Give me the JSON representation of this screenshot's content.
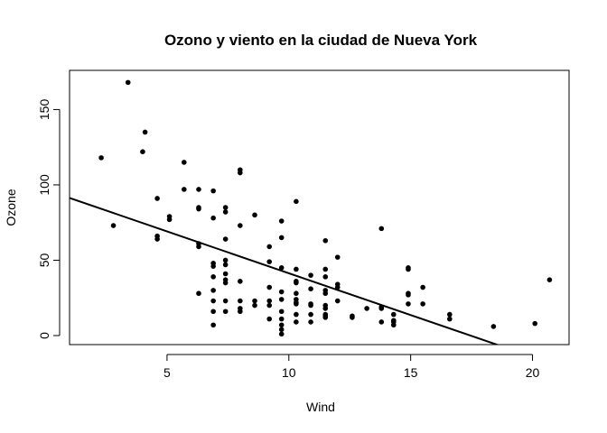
{
  "chart_data": {
    "type": "scatter",
    "title": "Ozono y viento en la ciudad de Nueva York",
    "xlabel": "Wind",
    "ylabel": "Ozone",
    "xlim": [
      1.0,
      21.5
    ],
    "ylim": [
      -6,
      176
    ],
    "xticks": [
      5,
      10,
      15,
      20
    ],
    "yticks": [
      0,
      50,
      100,
      150
    ],
    "grid": false,
    "points": [
      [
        2.3,
        118
      ],
      [
        2.8,
        73
      ],
      [
        3.4,
        168
      ],
      [
        4.0,
        122
      ],
      [
        4.1,
        135
      ],
      [
        4.6,
        91
      ],
      [
        4.6,
        66
      ],
      [
        4.6,
        64
      ],
      [
        5.1,
        79
      ],
      [
        5.1,
        77
      ],
      [
        5.7,
        115
      ],
      [
        5.7,
        97
      ],
      [
        6.3,
        97
      ],
      [
        6.3,
        85
      ],
      [
        6.3,
        84
      ],
      [
        6.3,
        61
      ],
      [
        6.3,
        59
      ],
      [
        6.3,
        28
      ],
      [
        6.9,
        96
      ],
      [
        6.9,
        78
      ],
      [
        6.9,
        48
      ],
      [
        6.9,
        46
      ],
      [
        6.9,
        39
      ],
      [
        6.9,
        30
      ],
      [
        6.9,
        23
      ],
      [
        6.9,
        16
      ],
      [
        6.9,
        7
      ],
      [
        7.4,
        85
      ],
      [
        7.4,
        82
      ],
      [
        7.4,
        64
      ],
      [
        7.4,
        50
      ],
      [
        7.4,
        47
      ],
      [
        7.4,
        41
      ],
      [
        7.4,
        37
      ],
      [
        7.4,
        35
      ],
      [
        7.4,
        23
      ],
      [
        7.4,
        16
      ],
      [
        8.0,
        110
      ],
      [
        8.0,
        108
      ],
      [
        8.0,
        73
      ],
      [
        8.0,
        36
      ],
      [
        8.0,
        23
      ],
      [
        8.0,
        18
      ],
      [
        8.0,
        16
      ],
      [
        8.6,
        80
      ],
      [
        8.6,
        23
      ],
      [
        8.6,
        20
      ],
      [
        9.2,
        59
      ],
      [
        9.2,
        49
      ],
      [
        9.2,
        32
      ],
      [
        9.2,
        23
      ],
      [
        9.2,
        20
      ],
      [
        9.2,
        11
      ],
      [
        9.7,
        76
      ],
      [
        9.7,
        65
      ],
      [
        9.7,
        45
      ],
      [
        9.7,
        29
      ],
      [
        9.7,
        24
      ],
      [
        9.7,
        16
      ],
      [
        9.7,
        11
      ],
      [
        9.7,
        7
      ],
      [
        9.7,
        4
      ],
      [
        9.7,
        1
      ],
      [
        10.3,
        89
      ],
      [
        10.3,
        44
      ],
      [
        10.3,
        36
      ],
      [
        10.3,
        35
      ],
      [
        10.3,
        28
      ],
      [
        10.3,
        24
      ],
      [
        10.3,
        22
      ],
      [
        10.3,
        21
      ],
      [
        10.3,
        14
      ],
      [
        10.3,
        9
      ],
      [
        10.9,
        40
      ],
      [
        10.9,
        31
      ],
      [
        10.9,
        21
      ],
      [
        10.9,
        20
      ],
      [
        10.9,
        14
      ],
      [
        10.9,
        9
      ],
      [
        11.5,
        63
      ],
      [
        11.5,
        44
      ],
      [
        11.5,
        39
      ],
      [
        11.5,
        30
      ],
      [
        11.5,
        28
      ],
      [
        11.5,
        20
      ],
      [
        11.5,
        18
      ],
      [
        11.5,
        14
      ],
      [
        11.5,
        13
      ],
      [
        11.5,
        12
      ],
      [
        12.0,
        52
      ],
      [
        12.0,
        34
      ],
      [
        12.0,
        32
      ],
      [
        12.0,
        23
      ],
      [
        12.6,
        13
      ],
      [
        12.6,
        12
      ],
      [
        13.2,
        18
      ],
      [
        13.8,
        71
      ],
      [
        13.8,
        19
      ],
      [
        13.8,
        18
      ],
      [
        13.8,
        9
      ],
      [
        14.3,
        14
      ],
      [
        14.3,
        10
      ],
      [
        14.3,
        9
      ],
      [
        14.3,
        7
      ],
      [
        14.9,
        45
      ],
      [
        14.9,
        44
      ],
      [
        14.9,
        28
      ],
      [
        14.9,
        27
      ],
      [
        14.9,
        21
      ],
      [
        15.5,
        32
      ],
      [
        15.5,
        21
      ],
      [
        16.6,
        14
      ],
      [
        16.6,
        11
      ],
      [
        18.4,
        6
      ],
      [
        20.1,
        8
      ],
      [
        20.7,
        37
      ]
    ],
    "fit_line": {
      "intercept": 96.873,
      "slope": -5.5509
    }
  }
}
